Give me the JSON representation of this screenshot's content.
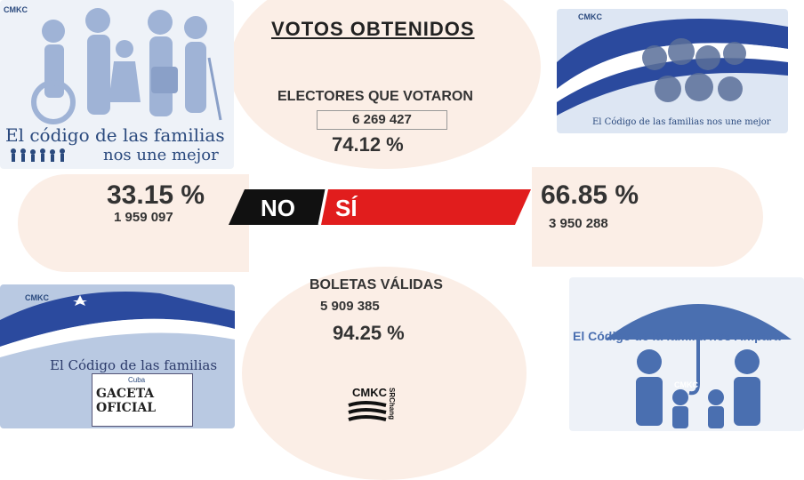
{
  "header": {
    "title": "VOTOS OBTENIDOS"
  },
  "electores": {
    "label": "ELECTORES QUE VOTARON",
    "count": "6 269 427",
    "percent": "74.12 %"
  },
  "no": {
    "label": "NO",
    "percent": "33.15 %",
    "count": "1 959 097",
    "color": "#111111"
  },
  "si": {
    "label": "SÍ",
    "percent": "66.85 %",
    "count": "3 950 288",
    "color": "#e11d1d"
  },
  "boletas": {
    "label": "BOLETAS VÁLIDAS",
    "count": "5 909 385",
    "percent": "94.25 %"
  },
  "panels": {
    "top_left": {
      "logo": "CMKC",
      "slogan_line1": "El código de las familias",
      "slogan_line2": "nos une mejor"
    },
    "top_right": {
      "logo": "CMKC",
      "slogan": "El Código de las familias nos une mejor"
    },
    "bottom_left": {
      "logo": "CMKC",
      "slogan": "El Código de las familias",
      "gaceta": "GACETA OFICIAL",
      "gaceta_tag": "Cuba"
    },
    "bottom_right": {
      "logo": "CMKC",
      "slogan": "El Código de la familia nos Ampara"
    }
  },
  "center_logo": {
    "name": "CMKC",
    "sub": "SRChang"
  },
  "colors": {
    "accent_red": "#e11d1d",
    "bar_dark": "#111111",
    "peach": "#fbeee6",
    "brand_blue": "#4a6fb0"
  }
}
